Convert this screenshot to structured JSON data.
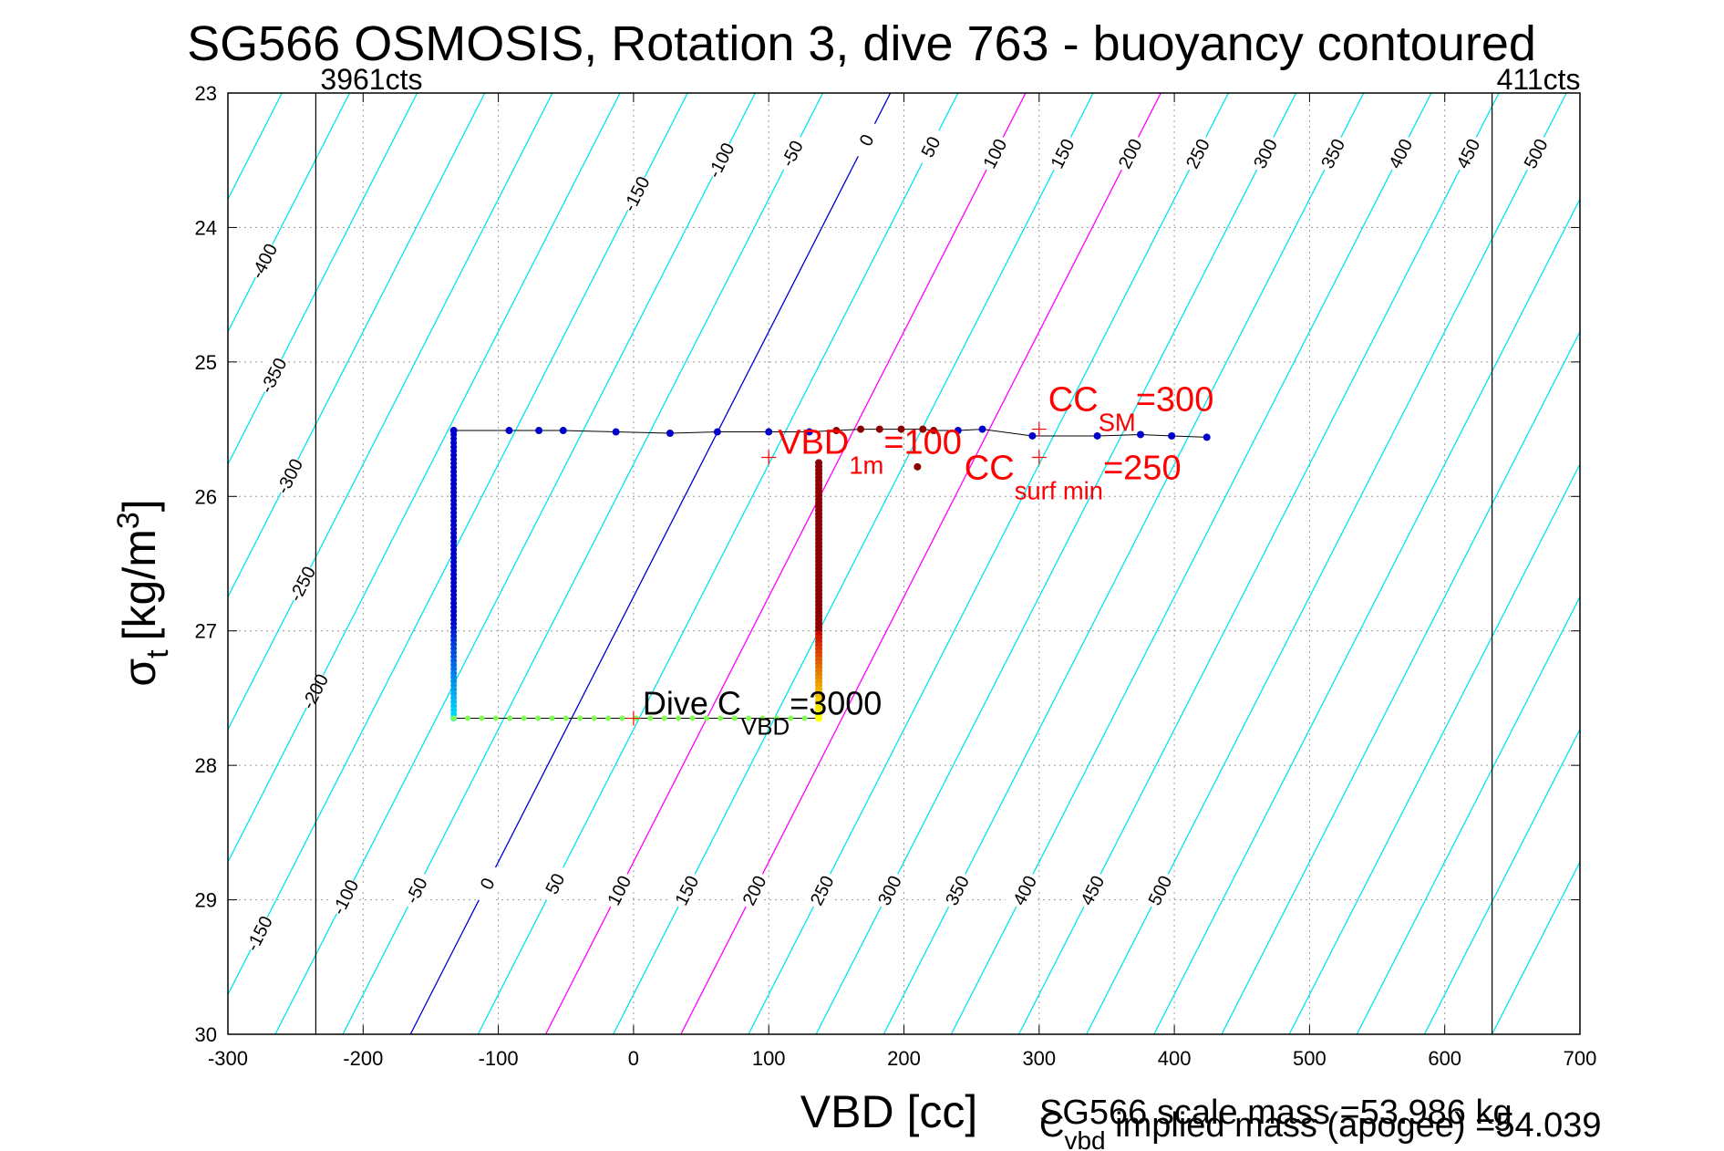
{
  "chart_data": {
    "type": "scatter",
    "title": "SG566 OSMOSIS, Rotation 3, dive 763 - buoyancy contoured",
    "xlabel": "VBD [cc]",
    "ylabel_main": "σ",
    "ylabel_sub": "t",
    "ylabel_unit": "[kg/m",
    "ylabel_sup": "3",
    "ylabel_close": "]",
    "xlim": [
      -300,
      700
    ],
    "ylim": [
      23,
      30
    ],
    "y_reversed": true,
    "grid": true,
    "xticks": [
      -300,
      -200,
      -100,
      0,
      100,
      200,
      300,
      400,
      500,
      600,
      700
    ],
    "yticks": [
      23,
      24,
      25,
      26,
      27,
      28,
      29,
      30
    ],
    "vbd_limits": [
      {
        "x": -235,
        "label": "3961cts"
      },
      {
        "x": 635,
        "label": "411cts"
      }
    ],
    "contours": {
      "values": [
        -450,
        -400,
        -350,
        -300,
        -250,
        -200,
        -150,
        -100,
        -50,
        0,
        50,
        100,
        150,
        200,
        250,
        300,
        350,
        400,
        450,
        500,
        550,
        600,
        650,
        700,
        750,
        800
      ],
      "zero_x_at_ymin": 190,
      "zero_x_at_ymax": -165,
      "zero_color": "#0000cc",
      "normal_color": "#00e5ee",
      "highlight_values": [
        100,
        200
      ],
      "highlight_color": "#ff00ff",
      "top_labels": [
        {
          "value": -400,
          "y": 24.25
        },
        {
          "value": -350,
          "y": 25.1
        },
        {
          "value": -300,
          "y": 25.85
        },
        {
          "value": -250,
          "y": 26.65
        },
        {
          "value": -200,
          "y": 27.45
        },
        {
          "value": -150,
          "y": 23.75
        },
        {
          "value": -100,
          "y": 23.5
        },
        {
          "value": -50,
          "y": 23.45
        },
        {
          "value": 0,
          "y": 23.35
        },
        {
          "value": 50,
          "y": 23.4
        },
        {
          "value": 100,
          "y": 23.45
        },
        {
          "value": 150,
          "y": 23.45
        },
        {
          "value": 200,
          "y": 23.45
        },
        {
          "value": 250,
          "y": 23.45
        },
        {
          "value": 300,
          "y": 23.45
        },
        {
          "value": 350,
          "y": 23.45
        },
        {
          "value": 400,
          "y": 23.45
        },
        {
          "value": 450,
          "y": 23.45
        },
        {
          "value": 500,
          "y": 23.45
        }
      ],
      "bottom_labels": [
        {
          "value": -150,
          "y": 29.25
        },
        {
          "value": -100,
          "y": 28.98
        },
        {
          "value": -50,
          "y": 28.93
        },
        {
          "value": 0,
          "y": 28.88
        },
        {
          "value": 50,
          "y": 28.88
        },
        {
          "value": 100,
          "y": 28.93
        },
        {
          "value": 150,
          "y": 28.93
        },
        {
          "value": 200,
          "y": 28.93
        },
        {
          "value": 250,
          "y": 28.93
        },
        {
          "value": 300,
          "y": 28.93
        },
        {
          "value": 350,
          "y": 28.93
        },
        {
          "value": 400,
          "y": 28.93
        },
        {
          "value": 450,
          "y": 28.93
        },
        {
          "value": 500,
          "y": 28.93
        }
      ]
    },
    "trajectory": [
      [
        -133,
        25.51
      ],
      [
        -92,
        25.51
      ],
      [
        -70,
        25.51
      ],
      [
        -52,
        25.51
      ],
      [
        -13,
        25.52
      ],
      [
        27,
        25.53
      ],
      [
        62,
        25.52
      ],
      [
        100,
        25.52
      ],
      [
        130,
        25.52
      ],
      [
        150,
        25.51
      ],
      [
        168,
        25.5
      ],
      [
        182,
        25.5
      ],
      [
        198,
        25.5
      ],
      [
        214,
        25.5
      ],
      [
        222,
        25.51
      ],
      [
        240,
        25.51
      ],
      [
        258,
        25.5
      ],
      [
        295,
        25.55
      ],
      [
        343,
        25.55
      ],
      [
        375,
        25.54
      ],
      [
        398,
        25.55
      ],
      [
        424,
        25.56
      ]
    ],
    "descent": {
      "x": -133,
      "y_from": 25.51,
      "y_to": 27.65
    },
    "bottom": {
      "y": 27.65,
      "x_from": -133,
      "x_to": 137
    },
    "ascent": {
      "x": 137,
      "y_from": 27.65,
      "y_to": 25.75
    },
    "markers": [
      {
        "text": "VBD",
        "sub": "1m",
        "tail": "=100",
        "x": 100,
        "y": 25.71
      },
      {
        "text": "CC",
        "sub": "SM",
        "tail": "=300",
        "x": 300,
        "y": 25.5
      },
      {
        "text": "CC",
        "sub": "surf min",
        "tail": "=250",
        "x": 300,
        "y": 25.71
      },
      {
        "text": "Dive C",
        "sub": "VBD",
        "tail": "=3000",
        "x": 0,
        "y": 27.65
      }
    ],
    "footer": {
      "scale_mass": "SG566 scale mass =53.986 kg",
      "implied_main": "C",
      "implied_sub": "vbd",
      "implied_rest": " implied mass (apogee) =54.039"
    },
    "colors": {
      "trajectory_line": "#000000",
      "surface_dots": "#0000cc",
      "bottom_dots": "#7fff50",
      "ascent_dots": "#8b0000",
      "marker_text": "#ff0000"
    }
  }
}
